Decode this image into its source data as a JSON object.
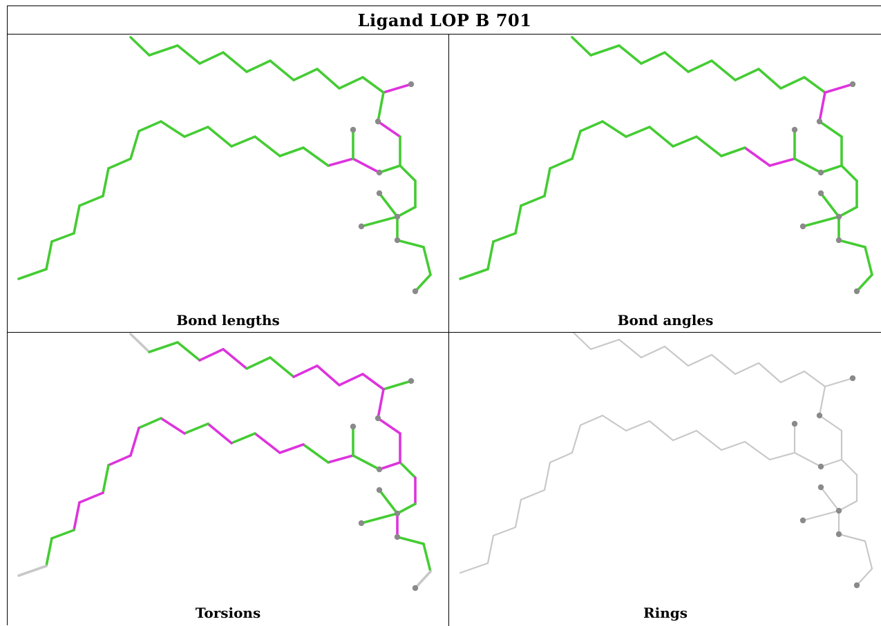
{
  "title": "Ligand LOP B 701",
  "panels": [
    {
      "caption": "Bond lengths"
    },
    {
      "caption": "Bond angles"
    },
    {
      "caption": "Torsions"
    },
    {
      "caption": "Rings"
    }
  ],
  "colors": {
    "ok": "#44cc33",
    "outlier": "#dd33dd",
    "neutral": "#c8c8c8",
    "atom": "#8a8a8a",
    "border": "#000000"
  }
}
